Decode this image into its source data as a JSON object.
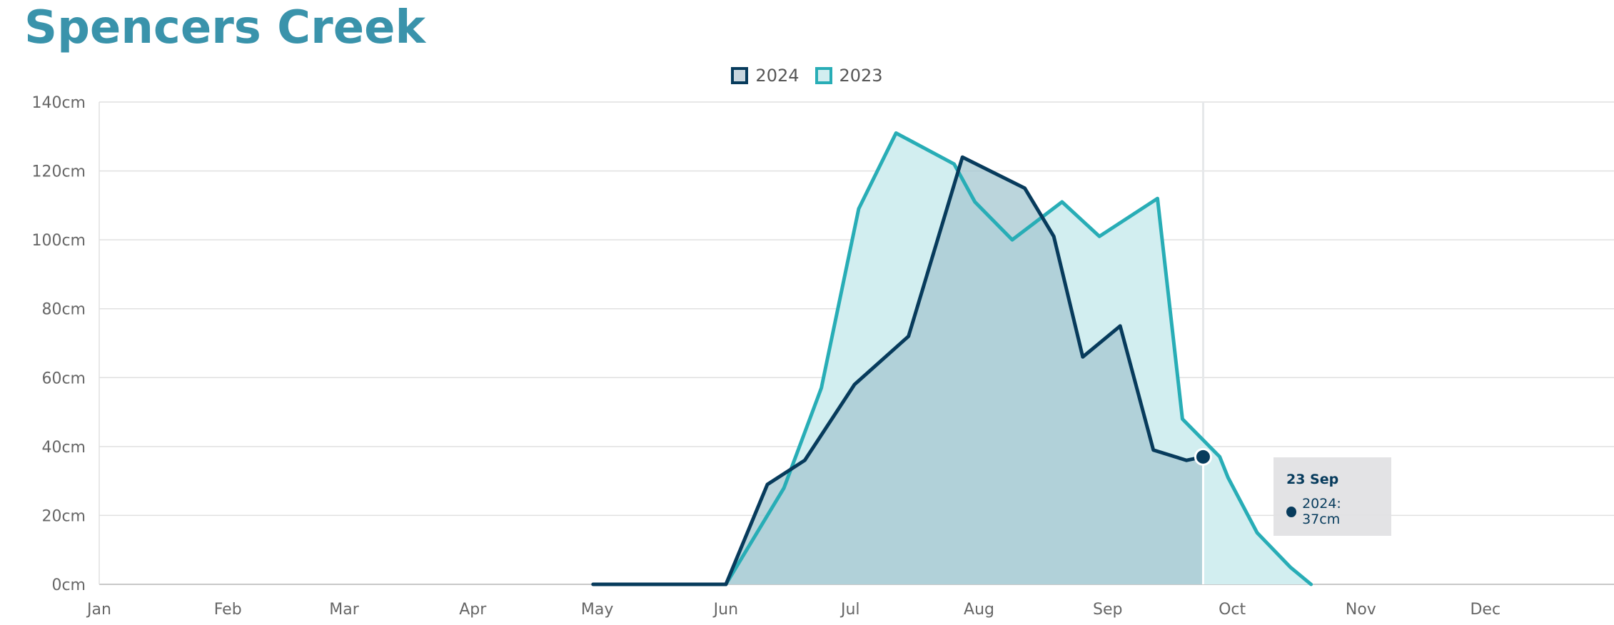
{
  "title": "Spencers Creek",
  "colors": {
    "title": "#3a93ab",
    "s2024_line": "#073b5c",
    "s2024_fill": "#a8c9d2",
    "s2023_line": "#28adb6",
    "s2023_fill": "#d2eef0",
    "grid": "#e0e0e0",
    "axis": "#c8c8c8"
  },
  "legend": [
    {
      "label": "2024",
      "line": "#073b5c",
      "fill": "#c9d6de"
    },
    {
      "label": "2023",
      "line": "#28adb6",
      "fill": "#d2eef0"
    }
  ],
  "tooltip": {
    "date": "23 Sep",
    "series": "2024",
    "value": "37cm",
    "text": "2024: 37cm"
  },
  "chart_data": {
    "type": "area",
    "title": "Spencers Creek",
    "x_unit": "day-of-year",
    "xlim": [
      1,
      366
    ],
    "ylim": [
      0,
      140
    ],
    "y_ticks": [
      {
        "value": 0,
        "label": "0cm"
      },
      {
        "value": 20,
        "label": "20cm"
      },
      {
        "value": 40,
        "label": "40cm"
      },
      {
        "value": 60,
        "label": "60cm"
      },
      {
        "value": 80,
        "label": "80cm"
      },
      {
        "value": 100,
        "label": "100cm"
      },
      {
        "value": 120,
        "label": "120cm"
      },
      {
        "value": 140,
        "label": "140cm"
      }
    ],
    "x_ticks": [
      {
        "value": 1,
        "label": "Jan"
      },
      {
        "value": 32,
        "label": "Feb"
      },
      {
        "value": 60,
        "label": "Mar"
      },
      {
        "value": 91,
        "label": "Apr"
      },
      {
        "value": 121,
        "label": "May"
      },
      {
        "value": 152,
        "label": "Jun"
      },
      {
        "value": 182,
        "label": "Jul"
      },
      {
        "value": 213,
        "label": "Aug"
      },
      {
        "value": 244,
        "label": "Sep"
      },
      {
        "value": 274,
        "label": "Oct"
      },
      {
        "value": 305,
        "label": "Nov"
      },
      {
        "value": 335,
        "label": "Dec"
      }
    ],
    "grid": true,
    "legend_position": "top-center",
    "series": [
      {
        "name": "2023",
        "x": [
          152,
          166,
          175,
          184,
          193,
          207,
          212,
          221,
          233,
          242,
          256,
          262,
          271,
          273,
          280,
          288,
          293
        ],
        "y": [
          0,
          28,
          57,
          109,
          131,
          122,
          111,
          100,
          111,
          101,
          112,
          48,
          37,
          31,
          15,
          5,
          0
        ]
      },
      {
        "name": "2024",
        "x": [
          120,
          152,
          162,
          171,
          183,
          196,
          209,
          224,
          231,
          238,
          247,
          255,
          263,
          267
        ],
        "y": [
          0,
          0,
          29,
          36,
          58,
          72,
          124,
          115,
          101,
          66,
          75,
          39,
          36,
          37
        ]
      }
    ],
    "hover": {
      "series": "2024",
      "x": 267,
      "y": 37,
      "label": "23 Sep"
    }
  }
}
